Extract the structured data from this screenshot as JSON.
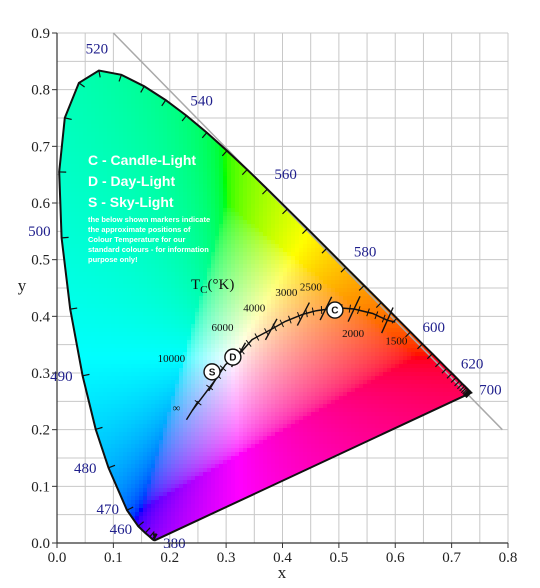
{
  "chart_data": {
    "type": "scatter",
    "xlabel": "x",
    "ylabel": "y",
    "xlim": [
      0,
      0.8
    ],
    "ylim": [
      0,
      0.9
    ],
    "x_ticks": [
      "0.0",
      "0.1",
      "0.2",
      "0.3",
      "0.4",
      "0.5",
      "0.6",
      "0.7",
      "0.8"
    ],
    "y_ticks": [
      "0.0",
      "0.1",
      "0.2",
      "0.3",
      "0.4",
      "0.5",
      "0.6",
      "0.7",
      "0.8",
      "0.9"
    ],
    "grid": true,
    "spectral_locus": [
      [
        0.1741,
        0.005
      ],
      [
        0.1738,
        0.0049
      ],
      [
        0.1733,
        0.0048
      ],
      [
        0.1726,
        0.0048
      ],
      [
        0.1714,
        0.0051
      ],
      [
        0.1689,
        0.0069
      ],
      [
        0.1644,
        0.0109
      ],
      [
        0.1566,
        0.0177
      ],
      [
        0.144,
        0.0297
      ],
      [
        0.1241,
        0.0578
      ],
      [
        0.0913,
        0.1327
      ],
      [
        0.0687,
        0.2007
      ],
      [
        0.0454,
        0.295
      ],
      [
        0.0235,
        0.4127
      ],
      [
        0.0082,
        0.5384
      ],
      [
        0.0039,
        0.6548
      ],
      [
        0.0139,
        0.7502
      ],
      [
        0.0389,
        0.812
      ],
      [
        0.0743,
        0.8338
      ],
      [
        0.1142,
        0.8262
      ],
      [
        0.1547,
        0.8059
      ],
      [
        0.1929,
        0.7816
      ],
      [
        0.2296,
        0.7543
      ],
      [
        0.2658,
        0.7243
      ],
      [
        0.3016,
        0.6923
      ],
      [
        0.3373,
        0.6589
      ],
      [
        0.3731,
        0.6245
      ],
      [
        0.4087,
        0.5896
      ],
      [
        0.4441,
        0.5547
      ],
      [
        0.4788,
        0.5202
      ],
      [
        0.5125,
        0.4866
      ],
      [
        0.5448,
        0.4544
      ],
      [
        0.5752,
        0.4242
      ],
      [
        0.6029,
        0.3965
      ],
      [
        0.627,
        0.3725
      ],
      [
        0.6482,
        0.3514
      ],
      [
        0.6658,
        0.334
      ],
      [
        0.6801,
        0.3197
      ],
      [
        0.6915,
        0.3083
      ],
      [
        0.7006,
        0.2993
      ],
      [
        0.7079,
        0.292
      ],
      [
        0.714,
        0.2859
      ],
      [
        0.719,
        0.2809
      ],
      [
        0.723,
        0.277
      ],
      [
        0.726,
        0.274
      ],
      [
        0.7283,
        0.2717
      ],
      [
        0.73,
        0.27
      ],
      [
        0.7311,
        0.2689
      ],
      [
        0.732,
        0.268
      ],
      [
        0.7327,
        0.2673
      ],
      [
        0.7334,
        0.2666
      ],
      [
        0.734,
        0.266
      ],
      [
        0.7344,
        0.2656
      ],
      [
        0.7346,
        0.2654
      ],
      [
        0.7347,
        0.2653
      ]
    ],
    "wavelength_labels": [
      {
        "nm": "380",
        "x": 0.1741,
        "y": 0.005
      },
      {
        "nm": "460",
        "x": 0.144,
        "y": 0.0297
      },
      {
        "nm": "470",
        "x": 0.1241,
        "y": 0.0578
      },
      {
        "nm": "480",
        "x": 0.0913,
        "y": 0.1327
      },
      {
        "nm": "490",
        "x": 0.0454,
        "y": 0.295
      },
      {
        "nm": "500",
        "x": 0.0082,
        "y": 0.5384
      },
      {
        "nm": "520",
        "x": 0.0743,
        "y": 0.8338
      },
      {
        "nm": "540",
        "x": 0.2296,
        "y": 0.7543
      },
      {
        "nm": "560",
        "x": 0.3731,
        "y": 0.6245
      },
      {
        "nm": "580",
        "x": 0.5125,
        "y": 0.4866
      },
      {
        "nm": "600",
        "x": 0.627,
        "y": 0.3725
      },
      {
        "nm": "620",
        "x": 0.6915,
        "y": 0.3083
      },
      {
        "nm": "700",
        "x": 0.7347,
        "y": 0.2653
      }
    ],
    "planckian_locus": [
      [
        0.6,
        0.39
      ],
      [
        0.586,
        0.393
      ],
      [
        0.56,
        0.405
      ],
      [
        0.527,
        0.413
      ],
      [
        0.497,
        0.415
      ],
      [
        0.46,
        0.41
      ],
      [
        0.437,
        0.404
      ],
      [
        0.405,
        0.391
      ],
      [
        0.38,
        0.377
      ],
      [
        0.346,
        0.359
      ],
      [
        0.322,
        0.332
      ],
      [
        0.299,
        0.315
      ],
      [
        0.281,
        0.288
      ],
      [
        0.24,
        0.234
      ]
    ],
    "isotherms": [
      {
        "label": "1500",
        "x": 0.586,
        "y": 0.393
      },
      {
        "label": "2000",
        "x": 0.527,
        "y": 0.413
      },
      {
        "label": "2500",
        "x": 0.477,
        "y": 0.414
      },
      {
        "label": "3000",
        "x": 0.437,
        "y": 0.404
      },
      {
        "label": "4000",
        "x": 0.38,
        "y": 0.377
      },
      {
        "label": "6000",
        "x": 0.322,
        "y": 0.332
      },
      {
        "label": "10000",
        "x": 0.281,
        "y": 0.288
      },
      {
        "label": "∞",
        "x": 0.24,
        "y": 0.234
      }
    ],
    "locus_title": "T",
    "locus_title_sub": "C",
    "locus_title_unit": "(°K)",
    "markers": [
      {
        "letter": "C",
        "x": 0.493,
        "y": 0.411
      },
      {
        "letter": "D",
        "x": 0.312,
        "y": 0.328
      },
      {
        "letter": "S",
        "x": 0.275,
        "y": 0.302
      }
    ],
    "legend": [
      "C - Candle-Light",
      "D - Day-Light",
      "S - Sky-Light"
    ],
    "note_lines": [
      "the below shown markers indicate",
      "the approximate positions of",
      "Colour Temperature for our",
      "standard colours - for information",
      "purpose only!"
    ],
    "reference_line": [
      [
        0.1,
        0.9
      ],
      [
        0.79,
        0.2
      ]
    ]
  }
}
